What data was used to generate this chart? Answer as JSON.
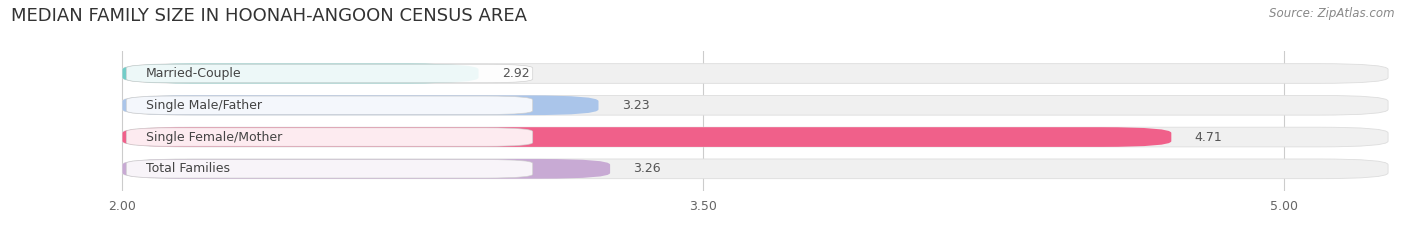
{
  "title": "MEDIAN FAMILY SIZE IN HOONAH-ANGOON CENSUS AREA",
  "source": "Source: ZipAtlas.com",
  "categories": [
    "Married-Couple",
    "Single Male/Father",
    "Single Female/Mother",
    "Total Families"
  ],
  "values": [
    2.92,
    3.23,
    4.71,
    3.26
  ],
  "bar_colors": [
    "#72cdc8",
    "#aac5ea",
    "#f0608a",
    "#c8aad4"
  ],
  "bar_edge_colors": [
    "#72cdc8",
    "#aac5ea",
    "#f0608a",
    "#c8aad4"
  ],
  "xlim_left": 1.72,
  "xlim_right": 5.28,
  "xstart": 2.0,
  "xticks": [
    2.0,
    3.5,
    5.0
  ],
  "xtick_labels": [
    "2.00",
    "3.50",
    "5.00"
  ],
  "bar_height": 0.62,
  "background_color": "#ffffff",
  "bar_bg_color": "#f0f0f0",
  "title_fontsize": 13,
  "label_fontsize": 9,
  "value_fontsize": 9,
  "source_fontsize": 8.5
}
